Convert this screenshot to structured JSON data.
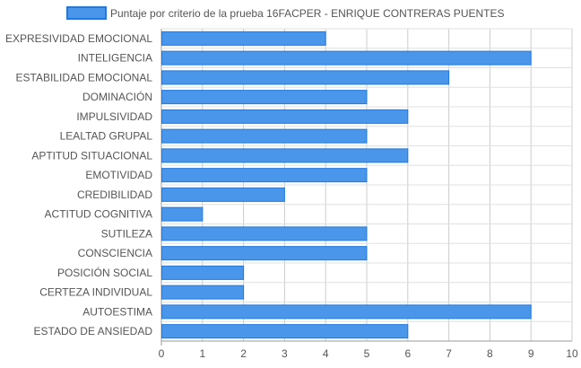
{
  "chart_data": {
    "type": "bar",
    "orientation": "horizontal",
    "categories": [
      "EXPRESIVIDAD EMOCIONAL",
      "INTELIGENCIA",
      "ESTABILIDAD EMOCIONAL",
      "DOMINACIÓN",
      "IMPULSIVIDAD",
      "LEALTAD GRUPAL",
      "APTITUD SITUACIONAL",
      "EMOTIVIDAD",
      "CREDIBILIDAD",
      "ACTITUD COGNITIVA",
      "SUTILEZA",
      "CONSCIENCIA",
      "POSICIÓN SOCIAL",
      "CERTEZA INDIVIDUAL",
      "AUTOESTIMA",
      "ESTADO DE ANSIEDAD"
    ],
    "series": [
      {
        "name": "Puntaje por criterio de la prueba 16FACPER - ENRIQUE CONTRERAS PUENTES",
        "values": [
          4,
          9,
          7,
          5,
          6,
          5,
          6,
          5,
          3,
          1,
          5,
          5,
          2,
          2,
          9,
          6
        ],
        "color": "#4a96ea",
        "border_color": "#1f78e0"
      }
    ],
    "x_ticks": [
      "0",
      "1",
      "2",
      "3",
      "4",
      "5",
      "6",
      "7",
      "8",
      "9",
      "10"
    ],
    "xlim": [
      0,
      10
    ],
    "grid": true,
    "legend_position": "top"
  }
}
